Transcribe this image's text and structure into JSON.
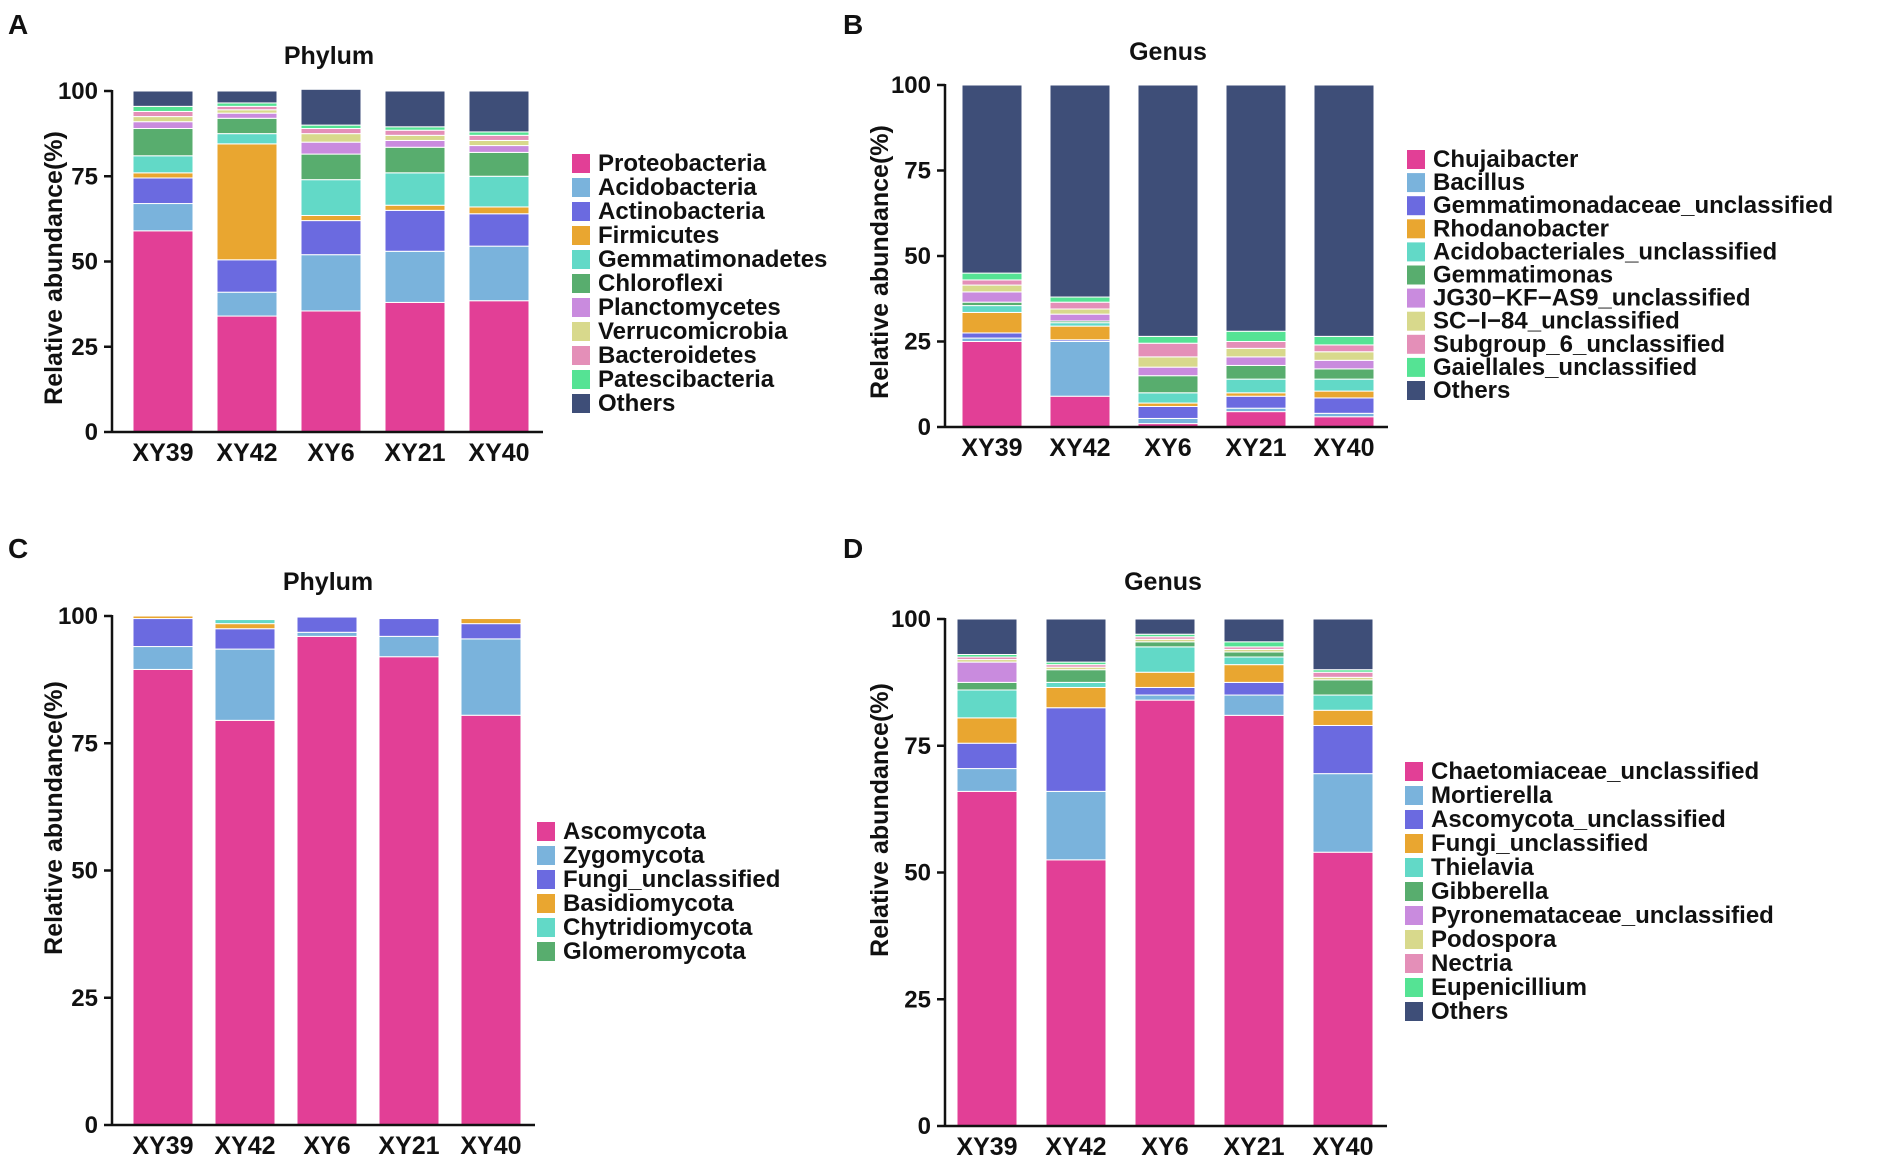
{
  "chart_data": [
    {
      "panel": "A",
      "type": "bar",
      "stacked": true,
      "title": "Phylum",
      "xlabel": "",
      "ylabel": "Relative abundance(%)",
      "ylim": [
        0,
        100
      ],
      "yticks": [
        0,
        25,
        50,
        75,
        100
      ],
      "legend_position": "right",
      "categories": [
        "XY39",
        "XY42",
        "XY6",
        "XY21",
        "XY40"
      ],
      "series": [
        {
          "name": "Proteobacteria",
          "color": "#e23f96",
          "values": [
            59,
            34,
            35.5,
            38,
            38.5
          ]
        },
        {
          "name": "Acidobacteria",
          "color": "#7ab3dc",
          "values": [
            8,
            7,
            16.5,
            15,
            16
          ]
        },
        {
          "name": "Actinobacteria",
          "color": "#6b6ae0",
          "values": [
            7.5,
            9.5,
            10,
            12,
            9.5
          ]
        },
        {
          "name": "Firmicutes",
          "color": "#e9a630",
          "values": [
            1.5,
            34,
            1.5,
            1.5,
            2
          ]
        },
        {
          "name": "Gemmatimonadetes",
          "color": "#62d9c7",
          "values": [
            5,
            3,
            10.5,
            9.5,
            9
          ]
        },
        {
          "name": "Chloroflexi",
          "color": "#58ad6e",
          "values": [
            8,
            4.5,
            7.5,
            7.5,
            7
          ]
        },
        {
          "name": "Planctomycetes",
          "color": "#c98bde",
          "values": [
            2,
            1.5,
            3.5,
            2,
            2
          ]
        },
        {
          "name": "Verrucomicrobia",
          "color": "#d8d98c",
          "values": [
            1.5,
            1,
            2.5,
            1.5,
            1.5
          ]
        },
        {
          "name": "Bacteroidetes",
          "color": "#e48fb8",
          "values": [
            1.5,
            1,
            1.5,
            1.5,
            1.5
          ]
        },
        {
          "name": "Patescibacteria",
          "color": "#55e394",
          "values": [
            1.5,
            1,
            1,
            1,
            1
          ]
        },
        {
          "name": "Others",
          "color": "#3e4e78",
          "values": [
            4.5,
            3.5,
            10.5,
            10.5,
            12
          ]
        }
      ]
    },
    {
      "panel": "B",
      "type": "bar",
      "stacked": true,
      "title": "Genus",
      "xlabel": "",
      "ylabel": "Relative abundance(%)",
      "ylim": [
        0,
        100
      ],
      "yticks": [
        0,
        25,
        50,
        75,
        100
      ],
      "legend_position": "right",
      "categories": [
        "XY39",
        "XY42",
        "XY6",
        "XY21",
        "XY40"
      ],
      "series": [
        {
          "name": "Chujaibacter",
          "color": "#e23f96",
          "values": [
            25,
            9,
            1,
            4.5,
            3
          ]
        },
        {
          "name": "Bacillus",
          "color": "#7ab3dc",
          "values": [
            1,
            16,
            1.5,
            1,
            1
          ]
        },
        {
          "name": "Gemmatimonadaceae_unclassified",
          "color": "#6b6ae0",
          "values": [
            1.5,
            0.5,
            3.5,
            3.5,
            4.5
          ]
        },
        {
          "name": "Rhodanobacter",
          "color": "#e9a630",
          "values": [
            6,
            4,
            1,
            1,
            2
          ]
        },
        {
          "name": "Acidobacteriales_unclassified",
          "color": "#62d9c7",
          "values": [
            2,
            1,
            3,
            4,
            3.5
          ]
        },
        {
          "name": "Gemmatimonas",
          "color": "#58ad6e",
          "values": [
            1,
            0.5,
            5,
            4,
            3
          ]
        },
        {
          "name": "JG30−KF−AS9_unclassified",
          "color": "#c98bde",
          "values": [
            3,
            2,
            2.5,
            2.5,
            2.5
          ]
        },
        {
          "name": "SC−I−84_unclassified",
          "color": "#d8d98c",
          "values": [
            2,
            1.5,
            3,
            2.5,
            2.5
          ]
        },
        {
          "name": "Subgroup_6_unclassified",
          "color": "#e48fb8",
          "values": [
            1.5,
            2,
            4,
            2,
            2
          ]
        },
        {
          "name": "Gaiellales_unclassified",
          "color": "#55e394",
          "values": [
            2,
            1.5,
            2,
            3,
            2.5
          ]
        },
        {
          "name": "Others",
          "color": "#3e4e78",
          "values": [
            55,
            62,
            73.5,
            72,
            73.5
          ]
        }
      ]
    },
    {
      "panel": "C",
      "type": "bar",
      "stacked": true,
      "title": "Phylum",
      "xlabel": "",
      "ylabel": "Relative abundance(%)",
      "ylim": [
        0,
        100
      ],
      "yticks": [
        0,
        25,
        50,
        75,
        100
      ],
      "legend_position": "right",
      "categories": [
        "XY39",
        "XY42",
        "XY6",
        "XY21",
        "XY40"
      ],
      "series": [
        {
          "name": "Ascomycota",
          "color": "#e23f96",
          "values": [
            89.5,
            79.5,
            96,
            92,
            80.5
          ]
        },
        {
          "name": "Zygomycota",
          "color": "#7ab3dc",
          "values": [
            4.5,
            14,
            0.8,
            4,
            15
          ]
        },
        {
          "name": "Fungi_unclassified",
          "color": "#6b6ae0",
          "values": [
            5.5,
            4,
            3,
            3.5,
            3
          ]
        },
        {
          "name": "Basidiomycota",
          "color": "#e9a630",
          "values": [
            0.5,
            1,
            0.1,
            0,
            1
          ]
        },
        {
          "name": "Chytridiomycota",
          "color": "#62d9c7",
          "values": [
            0,
            0.8,
            0,
            0,
            0
          ]
        },
        {
          "name": "Glomeromycota",
          "color": "#58ad6e",
          "values": [
            0,
            0,
            0,
            0,
            0
          ]
        }
      ]
    },
    {
      "panel": "D",
      "type": "bar",
      "stacked": true,
      "title": "Genus",
      "xlabel": "",
      "ylabel": "Relative abundance(%)",
      "ylim": [
        0,
        100
      ],
      "yticks": [
        0,
        25,
        50,
        75,
        100
      ],
      "legend_position": "right",
      "categories": [
        "XY39",
        "XY42",
        "XY6",
        "XY21",
        "XY40"
      ],
      "series": [
        {
          "name": "Chaetomiaceae_unclassified",
          "color": "#e23f96",
          "values": [
            66,
            52.5,
            84,
            81,
            54
          ]
        },
        {
          "name": "Mortierella",
          "color": "#7ab3dc",
          "values": [
            4.5,
            13.5,
            1,
            4,
            15.5
          ]
        },
        {
          "name": "Ascomycota_unclassified",
          "color": "#6b6ae0",
          "values": [
            5,
            16.5,
            1.5,
            2.5,
            9.5
          ]
        },
        {
          "name": "Fungi_unclassified",
          "color": "#e9a630",
          "values": [
            5,
            4,
            3,
            3.5,
            3
          ]
        },
        {
          "name": "Thielavia",
          "color": "#62d9c7",
          "values": [
            5.5,
            1,
            5,
            1.5,
            3
          ]
        },
        {
          "name": "Gibberella",
          "color": "#58ad6e",
          "values": [
            1.5,
            2.5,
            1,
            1,
            3
          ]
        },
        {
          "name": "Pyronemataceae_unclassified",
          "color": "#c98bde",
          "values": [
            4,
            0,
            0,
            0,
            0
          ]
        },
        {
          "name": "Podospora",
          "color": "#d8d98c",
          "values": [
            0.5,
            0.5,
            0.5,
            0.5,
            0.5
          ]
        },
        {
          "name": "Nectria",
          "color": "#e48fb8",
          "values": [
            0.5,
            0.5,
            0.5,
            0.5,
            1
          ]
        },
        {
          "name": "Eupenicillium",
          "color": "#55e394",
          "values": [
            0.5,
            0.5,
            0.5,
            1,
            0.5
          ]
        },
        {
          "name": "Others",
          "color": "#3e4e78",
          "values": [
            7,
            8.5,
            3,
            4.5,
            10
          ]
        }
      ]
    }
  ]
}
